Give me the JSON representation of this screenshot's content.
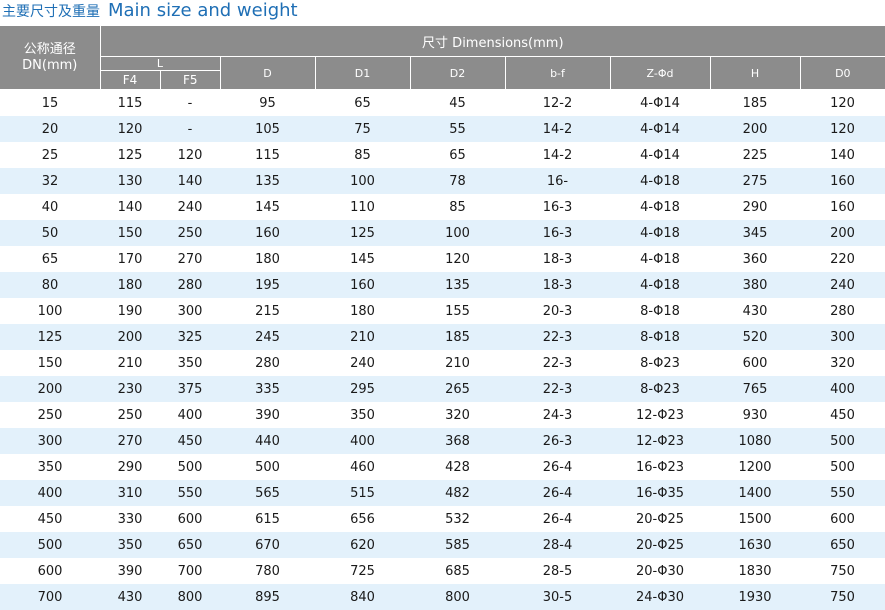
{
  "title": {
    "cn": "主要尺寸及重量",
    "en": "Main size and weight"
  },
  "header": {
    "dn": "公称通径\nDN(mm)",
    "dimensions": "尺寸 Dimensions(mm)",
    "l": "L",
    "cols": [
      "F4",
      "F5",
      "D",
      "D1",
      "D2",
      "b-f",
      "Z-Φd",
      "H",
      "D0"
    ]
  },
  "rows": [
    [
      "15",
      "115",
      "-",
      "95",
      "65",
      "45",
      "12-2",
      "4-Φ14",
      "185",
      "120"
    ],
    [
      "20",
      "120",
      "-",
      "105",
      "75",
      "55",
      "14-2",
      "4-Φ14",
      "200",
      "120"
    ],
    [
      "25",
      "125",
      "120",
      "115",
      "85",
      "65",
      "14-2",
      "4-Φ14",
      "225",
      "140"
    ],
    [
      "32",
      "130",
      "140",
      "135",
      "100",
      "78",
      "16-",
      "4-Φ18",
      "275",
      "160"
    ],
    [
      "40",
      "140",
      "240",
      "145",
      "110",
      "85",
      "16-3",
      "4-Φ18",
      "290",
      "160"
    ],
    [
      "50",
      "150",
      "250",
      "160",
      "125",
      "100",
      "16-3",
      "4-Φ18",
      "345",
      "200"
    ],
    [
      "65",
      "170",
      "270",
      "180",
      "145",
      "120",
      "18-3",
      "4-Φ18",
      "360",
      "220"
    ],
    [
      "80",
      "180",
      "280",
      "195",
      "160",
      "135",
      "18-3",
      "4-Φ18",
      "380",
      "240"
    ],
    [
      "100",
      "190",
      "300",
      "215",
      "180",
      "155",
      "20-3",
      "8-Φ18",
      "430",
      "280"
    ],
    [
      "125",
      "200",
      "325",
      "245",
      "210",
      "185",
      "22-3",
      "8-Φ18",
      "520",
      "300"
    ],
    [
      "150",
      "210",
      "350",
      "280",
      "240",
      "210",
      "22-3",
      "8-Φ23",
      "600",
      "320"
    ],
    [
      "200",
      "230",
      "375",
      "335",
      "295",
      "265",
      "22-3",
      "8-Φ23",
      "765",
      "400"
    ],
    [
      "250",
      "250",
      "400",
      "390",
      "350",
      "320",
      "24-3",
      "12-Φ23",
      "930",
      "450"
    ],
    [
      "300",
      "270",
      "450",
      "440",
      "400",
      "368",
      "26-3",
      "12-Φ23",
      "1080",
      "500"
    ],
    [
      "350",
      "290",
      "500",
      "500",
      "460",
      "428",
      "26-4",
      "16-Φ23",
      "1200",
      "500"
    ],
    [
      "400",
      "310",
      "550",
      "565",
      "515",
      "482",
      "26-4",
      "16-Φ35",
      "1400",
      "550"
    ],
    [
      "450",
      "330",
      "600",
      "615",
      "656",
      "532",
      "26-4",
      "20-Φ25",
      "1500",
      "600"
    ],
    [
      "500",
      "350",
      "650",
      "670",
      "620",
      "585",
      "28-4",
      "20-Φ25",
      "1630",
      "650"
    ],
    [
      "600",
      "390",
      "700",
      "780",
      "725",
      "685",
      "28-5",
      "20-Φ30",
      "1830",
      "750"
    ],
    [
      "700",
      "430",
      "800",
      "895",
      "840",
      "800",
      "30-5",
      "24-Φ30",
      "1930",
      "750"
    ]
  ]
}
